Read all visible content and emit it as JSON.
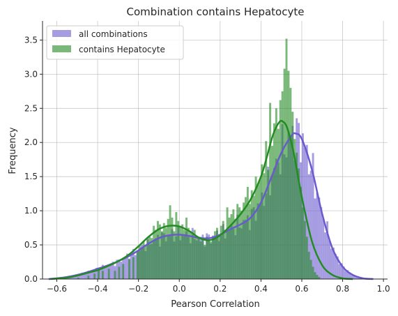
{
  "chart_data": {
    "type": "histogram",
    "title": "Combination contains Hepatocyte",
    "xlabel": "Pearson Correlation",
    "ylabel": "Frequency",
    "xlim": [
      -0.67,
      1.02
    ],
    "ylim": [
      0,
      3.78
    ],
    "grid": true,
    "legend_position": "top-left",
    "x_ticks": [
      -0.6,
      -0.4,
      -0.2,
      0.0,
      0.2,
      0.4,
      0.6,
      0.8,
      1.0
    ],
    "x_tick_labels": [
      "−0.6",
      "−0.4",
      "−0.2",
      "0.0",
      "0.2",
      "0.4",
      "0.6",
      "0.8",
      "1.0"
    ],
    "y_ticks": [
      0.0,
      0.5,
      1.0,
      1.5,
      2.0,
      2.5,
      3.0,
      3.5
    ],
    "y_tick_labels": [
      "0.0",
      "0.5",
      "1.0",
      "1.5",
      "2.0",
      "2.5",
      "3.0",
      "3.5"
    ],
    "bin_width": 0.01,
    "series": [
      {
        "name": "all combinations",
        "color": "#6a5acd",
        "kde": [
          [
            -0.64,
            0.0
          ],
          [
            -0.6,
            0.01
          ],
          [
            -0.55,
            0.03
          ],
          [
            -0.5,
            0.06
          ],
          [
            -0.45,
            0.1
          ],
          [
            -0.4,
            0.15
          ],
          [
            -0.35,
            0.2
          ],
          [
            -0.3,
            0.26
          ],
          [
            -0.25,
            0.33
          ],
          [
            -0.2,
            0.42
          ],
          [
            -0.15,
            0.52
          ],
          [
            -0.1,
            0.6
          ],
          [
            -0.05,
            0.64
          ],
          [
            0.0,
            0.65
          ],
          [
            0.05,
            0.63
          ],
          [
            0.1,
            0.6
          ],
          [
            0.15,
            0.6
          ],
          [
            0.2,
            0.65
          ],
          [
            0.25,
            0.73
          ],
          [
            0.3,
            0.8
          ],
          [
            0.35,
            0.9
          ],
          [
            0.4,
            1.12
          ],
          [
            0.45,
            1.48
          ],
          [
            0.5,
            1.85
          ],
          [
            0.55,
            2.1
          ],
          [
            0.57,
            2.13
          ],
          [
            0.6,
            2.05
          ],
          [
            0.65,
            1.6
          ],
          [
            0.7,
            0.95
          ],
          [
            0.75,
            0.45
          ],
          [
            0.8,
            0.18
          ],
          [
            0.85,
            0.06
          ],
          [
            0.9,
            0.01
          ],
          [
            0.95,
            0.0
          ]
        ]
      },
      {
        "name": "contains Hepatocyte",
        "color": "#228b22",
        "kde": [
          [
            -0.63,
            0.0
          ],
          [
            -0.55,
            0.02
          ],
          [
            -0.5,
            0.05
          ],
          [
            -0.45,
            0.09
          ],
          [
            -0.4,
            0.13
          ],
          [
            -0.35,
            0.19
          ],
          [
            -0.3,
            0.26
          ],
          [
            -0.25,
            0.35
          ],
          [
            -0.2,
            0.48
          ],
          [
            -0.15,
            0.62
          ],
          [
            -0.1,
            0.73
          ],
          [
            -0.05,
            0.78
          ],
          [
            0.0,
            0.77
          ],
          [
            0.05,
            0.7
          ],
          [
            0.1,
            0.6
          ],
          [
            0.15,
            0.57
          ],
          [
            0.2,
            0.64
          ],
          [
            0.25,
            0.78
          ],
          [
            0.3,
            0.95
          ],
          [
            0.35,
            1.17
          ],
          [
            0.4,
            1.5
          ],
          [
            0.43,
            1.8
          ],
          [
            0.46,
            2.12
          ],
          [
            0.49,
            2.3
          ],
          [
            0.51,
            2.3
          ],
          [
            0.53,
            2.2
          ],
          [
            0.56,
            1.85
          ],
          [
            0.6,
            1.2
          ],
          [
            0.65,
            0.55
          ],
          [
            0.7,
            0.2
          ],
          [
            0.75,
            0.06
          ],
          [
            0.8,
            0.01
          ],
          [
            0.85,
            0.0
          ]
        ],
        "bars": [
          [
            -0.63,
            0.01
          ],
          [
            -0.5,
            0.02
          ],
          [
            -0.45,
            0.05
          ],
          [
            -0.42,
            0.08
          ],
          [
            -0.4,
            0.13
          ],
          [
            -0.38,
            0.12
          ],
          [
            -0.35,
            0.15
          ],
          [
            -0.32,
            0.12
          ],
          [
            -0.3,
            0.18
          ],
          [
            -0.28,
            0.22
          ],
          [
            -0.25,
            0.3
          ],
          [
            -0.23,
            0.32
          ],
          [
            -0.21,
            0.42
          ],
          [
            -0.2,
            0.48
          ],
          [
            -0.19,
            0.45
          ],
          [
            -0.18,
            0.55
          ],
          [
            -0.17,
            0.5
          ],
          [
            -0.16,
            0.58
          ],
          [
            -0.15,
            0.62
          ],
          [
            -0.14,
            0.6
          ],
          [
            -0.13,
            0.78
          ],
          [
            -0.12,
            0.72
          ],
          [
            -0.11,
            0.85
          ],
          [
            -0.1,
            0.8
          ],
          [
            -0.09,
            0.7
          ],
          [
            -0.08,
            0.82
          ],
          [
            -0.07,
            0.75
          ],
          [
            -0.06,
            0.88
          ],
          [
            -0.05,
            1.08
          ],
          [
            -0.04,
            0.9
          ],
          [
            -0.03,
            0.7
          ],
          [
            -0.02,
            0.98
          ],
          [
            -0.01,
            0.85
          ],
          [
            0.0,
            0.78
          ],
          [
            0.01,
            0.8
          ],
          [
            0.02,
            0.72
          ],
          [
            0.03,
            0.9
          ],
          [
            0.04,
            0.75
          ],
          [
            0.05,
            0.68
          ],
          [
            0.06,
            0.65
          ],
          [
            0.07,
            0.72
          ],
          [
            0.08,
            0.6
          ],
          [
            0.09,
            0.62
          ],
          [
            0.1,
            0.55
          ],
          [
            0.11,
            0.6
          ],
          [
            0.12,
            0.5
          ],
          [
            0.13,
            0.62
          ],
          [
            0.14,
            0.58
          ],
          [
            0.15,
            0.55
          ],
          [
            0.16,
            0.62
          ],
          [
            0.17,
            0.7
          ],
          [
            0.18,
            0.75
          ],
          [
            0.19,
            0.65
          ],
          [
            0.2,
            0.78
          ],
          [
            0.21,
            0.85
          ],
          [
            0.22,
            0.72
          ],
          [
            0.23,
            1.05
          ],
          [
            0.24,
            0.9
          ],
          [
            0.25,
            0.95
          ],
          [
            0.26,
            1.02
          ],
          [
            0.27,
            0.88
          ],
          [
            0.28,
            1.1
          ],
          [
            0.29,
            1.05
          ],
          [
            0.3,
            1.0
          ],
          [
            0.31,
            1.12
          ],
          [
            0.32,
            1.2
          ],
          [
            0.33,
            1.35
          ],
          [
            0.34,
            1.1
          ],
          [
            0.35,
            1.3
          ],
          [
            0.36,
            1.22
          ],
          [
            0.37,
            1.5
          ],
          [
            0.38,
            1.38
          ],
          [
            0.39,
            1.45
          ],
          [
            0.4,
            1.68
          ],
          [
            0.41,
            1.55
          ],
          [
            0.42,
            2.02
          ],
          [
            0.43,
            1.6
          ],
          [
            0.44,
            2.58
          ],
          [
            0.45,
            1.95
          ],
          [
            0.46,
            2.28
          ],
          [
            0.47,
            2.5
          ],
          [
            0.48,
            2.2
          ],
          [
            0.49,
            2.62
          ],
          [
            0.5,
            2.75
          ],
          [
            0.51,
            3.08
          ],
          [
            0.52,
            3.52
          ],
          [
            0.53,
            3.05
          ],
          [
            0.54,
            2.8
          ],
          [
            0.55,
            2.45
          ],
          [
            0.56,
            2.05
          ],
          [
            0.57,
            1.85
          ],
          [
            0.58,
            1.62
          ],
          [
            0.59,
            1.35
          ],
          [
            0.6,
            1.05
          ],
          [
            0.61,
            0.85
          ],
          [
            0.62,
            0.62
          ],
          [
            0.63,
            0.4
          ],
          [
            0.64,
            0.28
          ],
          [
            0.65,
            0.18
          ],
          [
            0.66,
            0.1
          ],
          [
            0.67,
            0.06
          ],
          [
            0.68,
            0.03
          ]
        ]
      }
    ]
  }
}
